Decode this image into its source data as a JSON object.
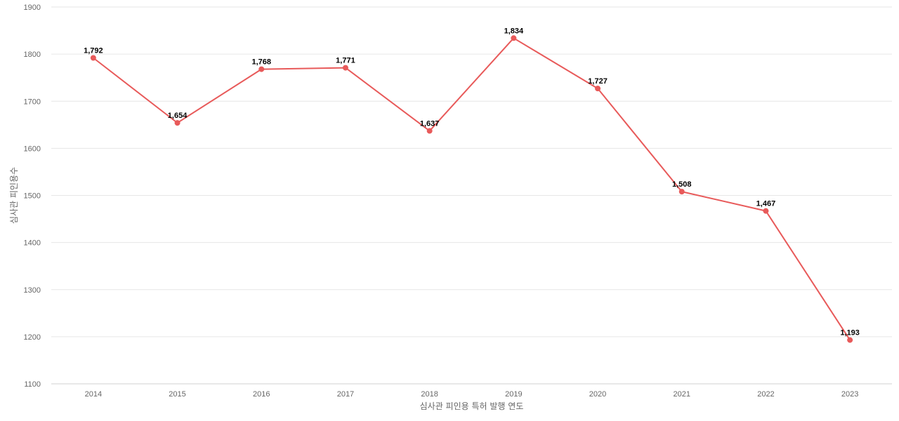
{
  "chart_data": {
    "type": "line",
    "title": "",
    "xlabel": "심사관 피인용 특허 발행 연도",
    "ylabel": "심사관 피인용수",
    "categories": [
      "2014",
      "2015",
      "2016",
      "2017",
      "2018",
      "2019",
      "2020",
      "2021",
      "2022",
      "2023"
    ],
    "series": [
      {
        "values": [
          1792,
          1654,
          1768,
          1771,
          1637,
          1834,
          1727,
          1508,
          1467,
          1193
        ],
        "data_labels": [
          "1,792",
          "1,654",
          "1,768",
          "1,771",
          "1,637",
          "1,834",
          "1,727",
          "1,508",
          "1,467",
          "1,193"
        ],
        "color": "#e85a5a"
      }
    ],
    "ylim": [
      1100,
      1900
    ],
    "yticks": [
      1100,
      1200,
      1300,
      1400,
      1500,
      1600,
      1700,
      1800,
      1900
    ],
    "grid": true,
    "legend": "none"
  }
}
